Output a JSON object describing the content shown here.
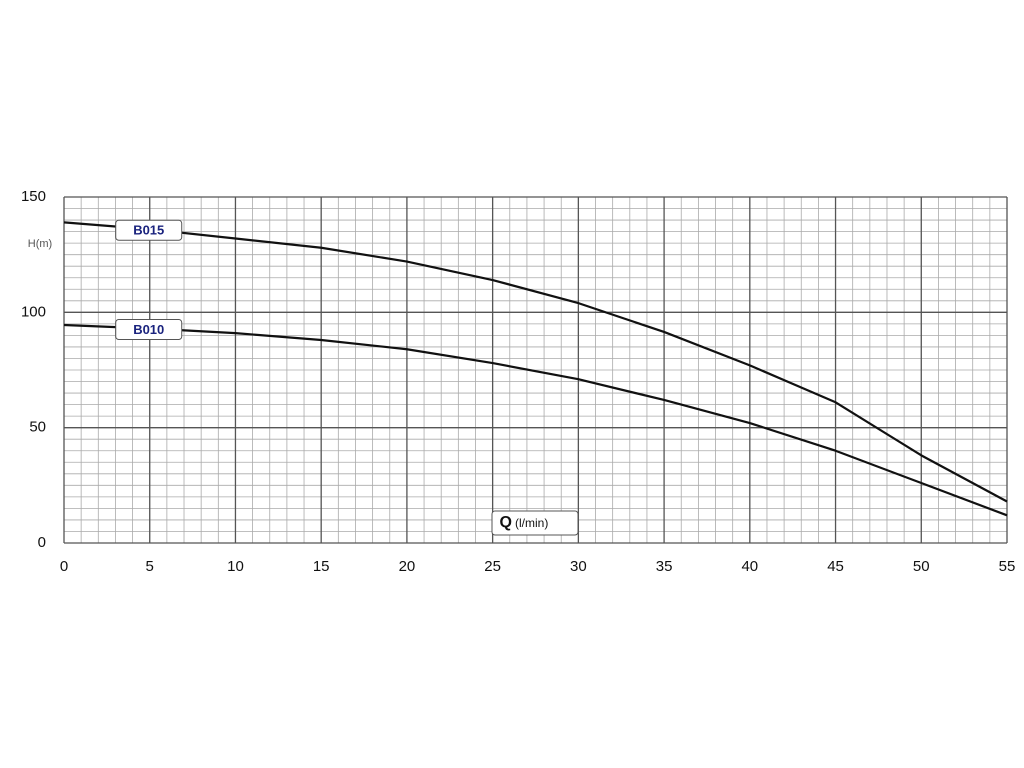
{
  "chart_data": {
    "type": "line",
    "y_label": "H(m)",
    "x_label": "Q",
    "x_label_unit": "(l/min)",
    "x": [
      0,
      5,
      10,
      15,
      20,
      25,
      30,
      35,
      40,
      45,
      50,
      55
    ],
    "series": [
      {
        "name": "B015",
        "color": "#111111",
        "values": [
          139,
          136,
          132,
          128,
          122,
          114,
          104,
          91.5,
          77,
          61,
          38,
          18
        ]
      },
      {
        "name": "B010",
        "color": "#111111",
        "values": [
          94.5,
          93,
          91,
          88,
          84,
          78,
          71,
          62,
          52,
          40,
          26,
          12
        ]
      }
    ],
    "xlim": [
      0,
      55
    ],
    "ylim": [
      0,
      150
    ],
    "xticks": [
      0,
      5,
      10,
      15,
      20,
      25,
      30,
      35,
      40,
      45,
      50,
      55
    ],
    "yticks": [
      0,
      50,
      100,
      150
    ],
    "x_minor_step": 1,
    "y_minor_step": 5,
    "grid": true
  }
}
